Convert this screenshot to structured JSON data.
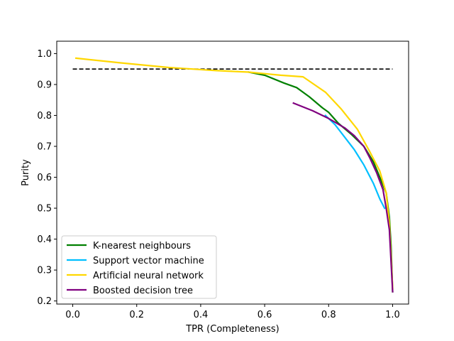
{
  "chart_data": {
    "type": "line",
    "title": "",
    "xlabel": "TPR (Completeness)",
    "ylabel": "Purity",
    "xlim": [
      -0.05,
      1.05
    ],
    "ylim": [
      0.19,
      1.04
    ],
    "xticks": [
      "0.0",
      "0.2",
      "0.4",
      "0.6",
      "0.8",
      "1.0"
    ],
    "yticks": [
      "0.2",
      "0.3",
      "0.4",
      "0.5",
      "0.6",
      "0.7",
      "0.8",
      "0.9",
      "1.0"
    ],
    "grid": false,
    "legend_position": "lower-left",
    "reference_line": {
      "y": 0.95,
      "x_range": [
        0.0,
        1.0
      ],
      "style": "dashed",
      "color": "#000000"
    },
    "series": [
      {
        "name": "K-nearest neighbours",
        "color": "#008000",
        "x": [
          0.55,
          0.6,
          0.66,
          0.7,
          0.74,
          0.78,
          0.8,
          0.83,
          0.87,
          0.91,
          0.94,
          0.96,
          0.98,
          0.99,
          0.995,
          1.0
        ],
        "y": [
          0.94,
          0.93,
          0.905,
          0.89,
          0.86,
          0.825,
          0.81,
          0.775,
          0.74,
          0.7,
          0.65,
          0.6,
          0.55,
          0.47,
          0.38,
          0.23
        ]
      },
      {
        "name": "Support vector machine",
        "color": "#00bfff",
        "x": [
          0.79,
          0.82,
          0.85,
          0.88,
          0.91,
          0.94,
          0.96,
          0.975
        ],
        "y": [
          0.8,
          0.77,
          0.73,
          0.69,
          0.64,
          0.58,
          0.53,
          0.5
        ]
      },
      {
        "name": "Artificial neural network",
        "color": "#ffd700",
        "x": [
          0.01,
          0.15,
          0.3,
          0.45,
          0.55,
          0.65,
          0.72,
          0.79,
          0.84,
          0.89,
          0.93,
          0.96,
          0.98,
          0.99,
          0.995,
          1.0
        ],
        "y": [
          0.985,
          0.97,
          0.955,
          0.945,
          0.94,
          0.93,
          0.925,
          0.875,
          0.82,
          0.755,
          0.68,
          0.62,
          0.55,
          0.45,
          0.35,
          0.24
        ]
      },
      {
        "name": "Boosted decision tree",
        "color": "#800080",
        "x": [
          0.69,
          0.75,
          0.8,
          0.85,
          0.88,
          0.91,
          0.93,
          0.95,
          0.97,
          0.98,
          0.99,
          0.995,
          1.0
        ],
        "y": [
          0.84,
          0.815,
          0.79,
          0.76,
          0.735,
          0.7,
          0.66,
          0.615,
          0.56,
          0.5,
          0.43,
          0.33,
          0.23
        ]
      }
    ]
  }
}
